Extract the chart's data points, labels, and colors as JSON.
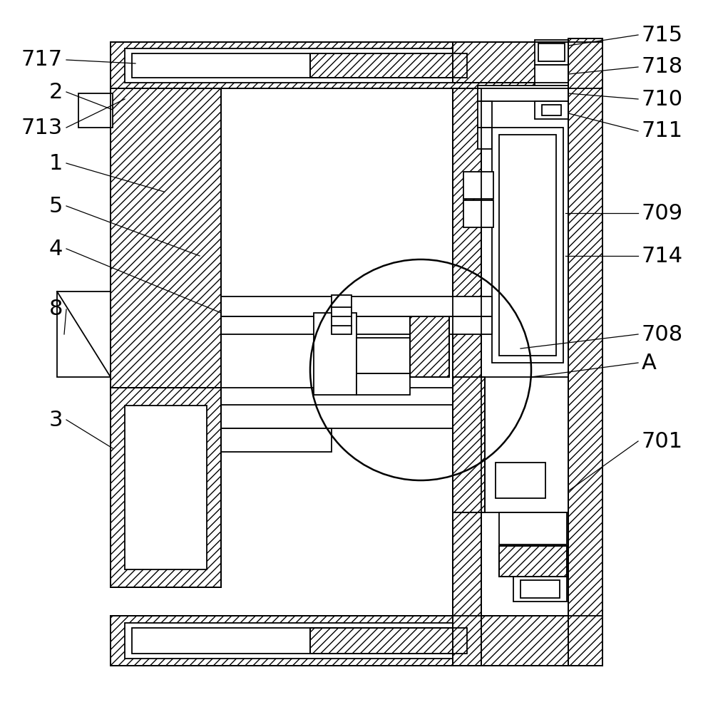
{
  "background_color": "#ffffff",
  "line_color": "#000000",
  "fig_width": 10.0,
  "fig_height": 9.99,
  "dpi": 100
}
